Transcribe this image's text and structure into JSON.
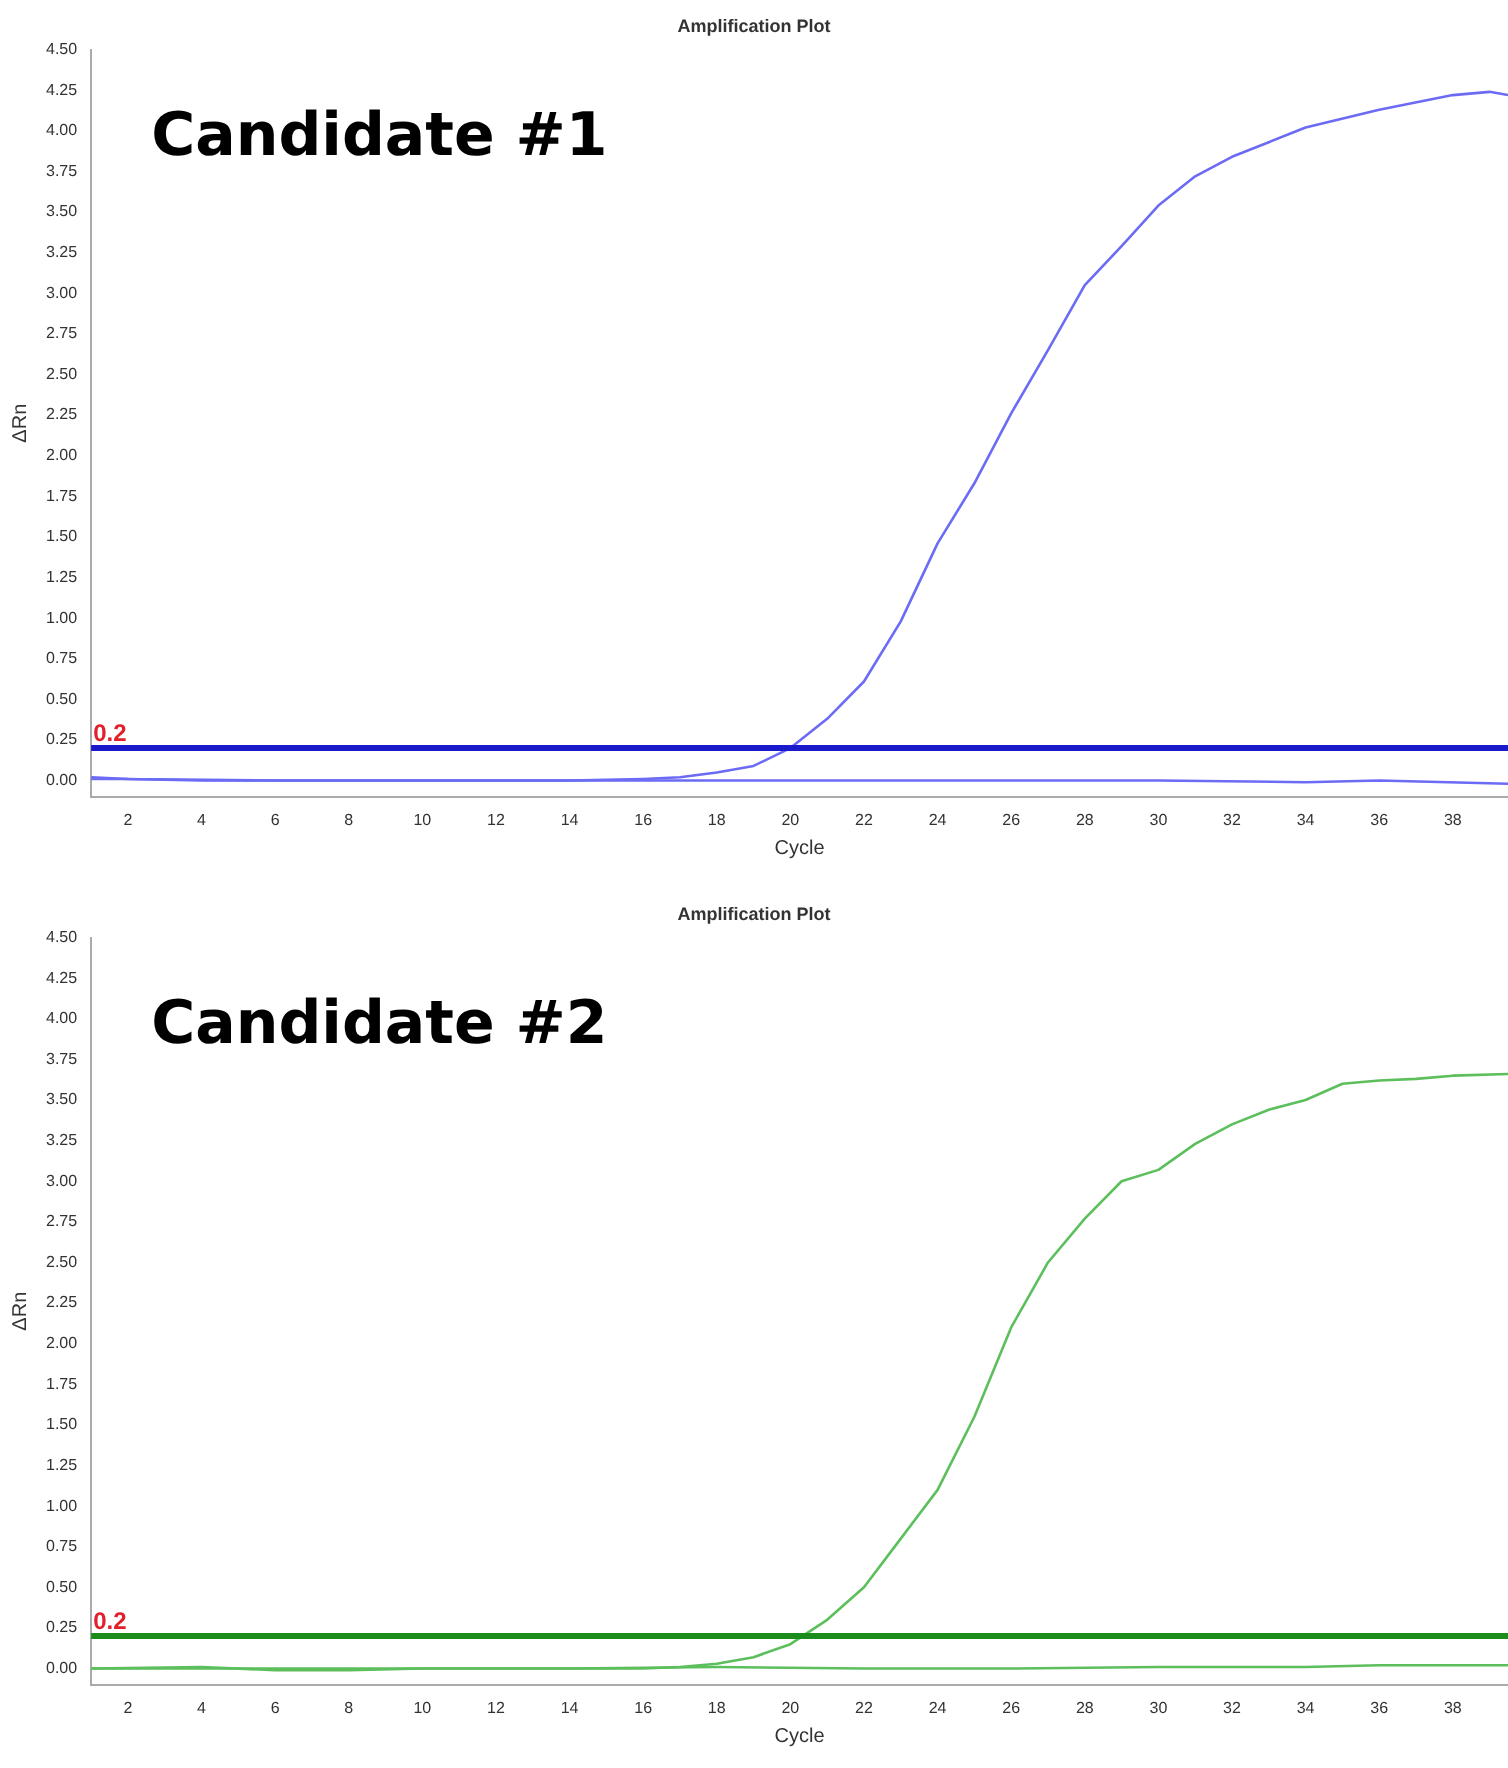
{
  "chart_data": [
    {
      "type": "line",
      "title": "Amplification Plot",
      "xlabel": "Cycle",
      "ylabel": "ΔRn",
      "annotations": [
        "Candidate #1"
      ],
      "xlim": [
        1,
        39.5
      ],
      "xticks": [
        2,
        4,
        6,
        8,
        10,
        12,
        14,
        16,
        18,
        20,
        22,
        24,
        26,
        28,
        30,
        32,
        34,
        36,
        38
      ],
      "ylim": [
        -0.1,
        4.5
      ],
      "yticks": [
        {
          "value": 0,
          "label": "0.00"
        },
        {
          "value": 0.25,
          "label": "0.25"
        },
        {
          "value": 0.5,
          "label": "0.50"
        },
        {
          "value": 0.75,
          "label": "0.75"
        },
        {
          "value": 1,
          "label": "1.00"
        },
        {
          "value": 1.25,
          "label": "1.25"
        },
        {
          "value": 1.5,
          "label": "1.50"
        },
        {
          "value": 1.75,
          "label": "1.75"
        },
        {
          "value": 2,
          "label": "2.00"
        },
        {
          "value": 2.25,
          "label": "2.25"
        },
        {
          "value": 2.5,
          "label": "2.50"
        },
        {
          "value": 2.75,
          "label": "2.75"
        },
        {
          "value": 3,
          "label": "3.00"
        },
        {
          "value": 3.25,
          "label": "3.25"
        },
        {
          "value": 3.5,
          "label": "3.50"
        },
        {
          "value": 3.75,
          "label": "3.75"
        },
        {
          "value": 4,
          "label": "4.00"
        },
        {
          "value": 4.25,
          "label": "4.25"
        },
        {
          "value": 4.5,
          "label": "4.50"
        }
      ],
      "series": [
        {
          "color": "#6b6bf5",
          "x": [
            1,
            2,
            4,
            8,
            12,
            14,
            16,
            17,
            18,
            19,
            20,
            21,
            22,
            23,
            24,
            25,
            26,
            27,
            28,
            29,
            30,
            31,
            32,
            33,
            34,
            36,
            38,
            39,
            39.5
          ],
          "values": [
            0.01,
            0.01,
            0,
            0,
            0,
            0,
            0.01,
            0.02,
            0.05,
            0.09,
            0.2,
            0.38,
            0.61,
            0.98,
            1.46,
            1.83,
            2.26,
            2.65,
            3.05,
            3.29,
            3.54,
            3.72,
            3.84,
            3.93,
            4.02,
            4.13,
            4.22,
            4.24,
            4.22
          ]
        },
        {
          "color": "#6b6bf5",
          "x": [
            1,
            2,
            6,
            10,
            14,
            18,
            22,
            26,
            30,
            34,
            36,
            39.5
          ],
          "values": [
            0.02,
            0.01,
            0,
            0,
            0,
            0,
            0,
            0,
            0,
            -0.01,
            0,
            -0.02
          ]
        }
      ],
      "ref_lines": [
        {
          "axis": "y",
          "value": 0.2,
          "label": "0.2",
          "color": "#1a1acc"
        }
      ]
    },
    {
      "type": "line",
      "title": "Amplification Plot",
      "xlabel": "Cycle",
      "ylabel": "ΔRn",
      "annotations": [
        "Candidate #2"
      ],
      "xlim": [
        1,
        39.5
      ],
      "xticks": [
        2,
        4,
        6,
        8,
        10,
        12,
        14,
        16,
        18,
        20,
        22,
        24,
        26,
        28,
        30,
        32,
        34,
        36,
        38
      ],
      "ylim": [
        -0.1,
        4.5
      ],
      "yticks": [
        {
          "value": 0,
          "label": "0.00"
        },
        {
          "value": 0.25,
          "label": "0.25"
        },
        {
          "value": 0.5,
          "label": "0.50"
        },
        {
          "value": 0.75,
          "label": "0.75"
        },
        {
          "value": 1,
          "label": "1.00"
        },
        {
          "value": 1.25,
          "label": "1.25"
        },
        {
          "value": 1.5,
          "label": "1.50"
        },
        {
          "value": 1.75,
          "label": "1.75"
        },
        {
          "value": 2,
          "label": "2.00"
        },
        {
          "value": 2.25,
          "label": "2.25"
        },
        {
          "value": 2.5,
          "label": "2.50"
        },
        {
          "value": 2.75,
          "label": "2.75"
        },
        {
          "value": 3,
          "label": "3.00"
        },
        {
          "value": 3.25,
          "label": "3.25"
        },
        {
          "value": 3.5,
          "label": "3.50"
        },
        {
          "value": 3.75,
          "label": "3.75"
        },
        {
          "value": 4,
          "label": "4.00"
        },
        {
          "value": 4.25,
          "label": "4.25"
        },
        {
          "value": 4.5,
          "label": "4.50"
        }
      ],
      "series": [
        {
          "color": "#5cbf5c",
          "x": [
            1,
            4,
            8,
            12,
            16,
            17,
            18,
            19,
            20,
            21,
            22,
            23,
            24,
            25,
            26,
            27,
            28,
            29,
            30,
            31,
            32,
            33,
            34,
            35,
            36,
            37,
            38,
            39.5
          ],
          "values": [
            0,
            0,
            0,
            0,
            0,
            0.01,
            0.03,
            0.07,
            0.15,
            0.3,
            0.5,
            0.8,
            1.1,
            1.55,
            2.1,
            2.5,
            2.77,
            3.0,
            3.07,
            3.23,
            3.35,
            3.44,
            3.5,
            3.6,
            3.62,
            3.63,
            3.65,
            3.66
          ]
        },
        {
          "color": "#5cbf5c",
          "x": [
            1,
            4,
            6,
            8,
            10,
            14,
            18,
            22,
            26,
            30,
            34,
            36,
            39.5
          ],
          "values": [
            0,
            0.01,
            -0.01,
            -0.01,
            0,
            0,
            0.01,
            0,
            0,
            0.01,
            0.01,
            0.02,
            0.02
          ]
        }
      ],
      "ref_lines": [
        {
          "axis": "y",
          "value": 0.2,
          "label": "0.2",
          "color": "#1a8c1a"
        }
      ]
    }
  ]
}
